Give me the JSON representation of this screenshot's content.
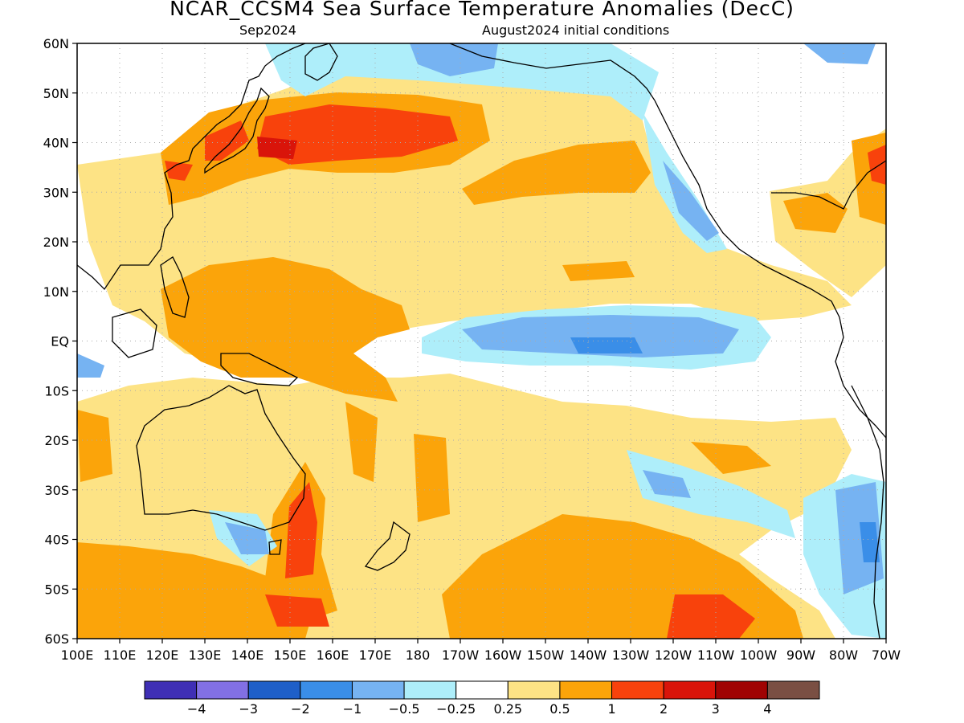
{
  "title": "NCAR_CCSM4 Sea Surface Temperature Anomalies (DecC)",
  "subtitle_left": "Sep2024",
  "subtitle_right": "August2024 initial conditions",
  "lat_labels": [
    "60N",
    "50N",
    "40N",
    "30N",
    "20N",
    "10N",
    "EQ",
    "10S",
    "20S",
    "30S",
    "40S",
    "50S",
    "60S"
  ],
  "lon_labels": [
    "100E",
    "110E",
    "120E",
    "130E",
    "140E",
    "150E",
    "160E",
    "170E",
    "180",
    "170W",
    "160W",
    "150W",
    "140W",
    "130W",
    "120W",
    "110W",
    "100W",
    "90W",
    "80W",
    "70W"
  ],
  "colorbar": {
    "colors": [
      "#3f2fb5",
      "#8270e4",
      "#1f5fc8",
      "#3a8ee8",
      "#76b3f2",
      "#aeeefa",
      "#ffffff",
      "#fde385",
      "#fba40a",
      "#f8420c",
      "#d9140a",
      "#a00303",
      "#7a4f43"
    ],
    "labels": [
      "−4",
      "−3",
      "−2",
      "−1",
      "−0.5",
      "−0.25",
      "0.25",
      "0.5",
      "1",
      "2",
      "3",
      "4"
    ]
  }
}
